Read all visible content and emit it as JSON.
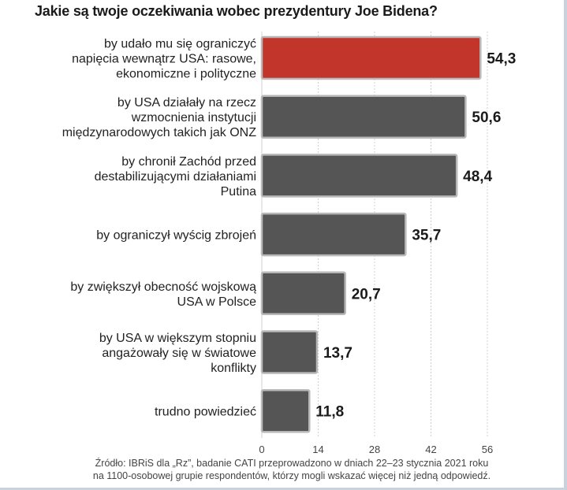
{
  "chart_data": {
    "type": "bar",
    "orientation": "horizontal",
    "title": "Jakie są twoje oczekiwania wobec prezydentury Joe Bidena?",
    "categories": [
      [
        "by udało mu się ograniczyć",
        "napięcia wewnątrz USA: rasowe,",
        "ekonomiczne i polityczne"
      ],
      [
        "by USA działały na rzecz",
        "wzmocnienia instytucji",
        "międzynarodowych takich jak ONZ"
      ],
      [
        "by chronił Zachód przed",
        "destabilizującymi działaniami",
        "Putina"
      ],
      [
        "by ograniczył wyścig zbrojeń"
      ],
      [
        "by zwiększył obecność wojskową",
        "USA w Polsce"
      ],
      [
        "by USA w większym stopniu",
        "angażowały się w światowe",
        "konflikty"
      ],
      [
        "trudno powiedzieć"
      ]
    ],
    "values": [
      54.3,
      50.6,
      48.4,
      35.7,
      20.7,
      13.7,
      11.8
    ],
    "value_labels": [
      "54,3",
      "50,6",
      "48,4",
      "35,7",
      "20,7",
      "13,7",
      "11,8"
    ],
    "bar_colors": [
      "#c1352b",
      "#555555",
      "#555555",
      "#555555",
      "#555555",
      "#555555",
      "#555555"
    ],
    "xlim": [
      0,
      56
    ],
    "xticks": [
      0,
      14,
      28,
      42,
      56
    ],
    "grid": true,
    "xlabel": "",
    "ylabel": ""
  },
  "source": {
    "line1": "Źródło: IBRiS dla „Rz”, badanie CATI przeprowadzono w dniach 22–23 stycznia 2021 roku",
    "line2": "na 1100-osobowej grupie respondentów, którzy mogli wskazać więcej niż jedną odpowiedź."
  }
}
